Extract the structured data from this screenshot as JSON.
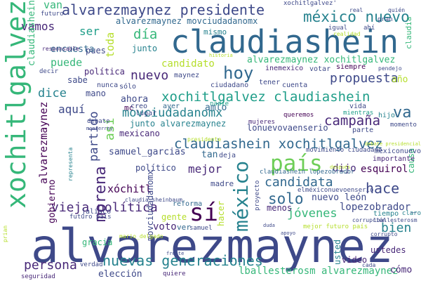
{
  "palette": [
    "#440154",
    "#482878",
    "#3e4989",
    "#31688e",
    "#26828e",
    "#1f9e89",
    "#35b779",
    "#6ece58",
    "#b5de2b",
    "#fde725"
  ],
  "words": [
    {
      "text": "alvarezmaynez",
      "rank": 1,
      "color": "#3e4989"
    },
    {
      "text": "claudiashein",
      "rank": 2,
      "color": "#31688e"
    },
    {
      "text": "xochitlgalvez",
      "rank": 3,
      "color": "#35b779"
    },
    {
      "text": "alvarezmaynez presidente",
      "rank": 4,
      "color": "#3e4989"
    },
    {
      "text": "méxico nuevo",
      "rank": 5,
      "color": "#26828e"
    },
    {
      "text": "país",
      "rank": 6,
      "color": "#6ece58"
    },
    {
      "text": "sí",
      "rank": 7,
      "color": "#440154"
    },
    {
      "text": "hoy",
      "rank": 8,
      "color": "#31688e"
    },
    {
      "text": "méxico",
      "rank": 9,
      "color": "#26828e"
    },
    {
      "text": "nuevas generaciones",
      "rank": 10,
      "color": "#26828e"
    },
    {
      "text": "vieja política",
      "rank": 11,
      "color": "#482878"
    },
    {
      "text": "xochitlgalvez claudiashein",
      "rank": 12,
      "color": "#1f9e89"
    },
    {
      "text": "claudiashein xochitlgalvez",
      "rank": 13,
      "color": "#31688e"
    },
    {
      "text": "campaña",
      "rank": 14,
      "color": "#482878"
    },
    {
      "text": "movciudadanomx",
      "rank": 15,
      "color": "#26828e"
    },
    {
      "text": "morena",
      "rank": 16,
      "color": "#482878"
    },
    {
      "text": "candidata",
      "rank": 17,
      "color": "#31688e"
    },
    {
      "text": "solo",
      "rank": 18,
      "color": "#31688e"
    },
    {
      "text": "hace",
      "rank": 19,
      "color": "#3e4989"
    },
    {
      "text": "bien",
      "rank": 20,
      "color": "#26828e"
    },
    {
      "text": "va",
      "rank": 21,
      "color": "#31688e"
    },
    {
      "text": "persona",
      "rank": 22,
      "color": "#482878"
    },
    {
      "text": "propuesta",
      "rank": 23,
      "color": "#3e4989"
    },
    {
      "text": "jóvenes",
      "rank": 24,
      "color": "#35b779"
    },
    {
      "text": "nuevo",
      "rank": 25,
      "color": "#482878"
    },
    {
      "text": "día",
      "rank": 26,
      "color": "#35b779"
    },
    {
      "text": "vamos",
      "rank": 27,
      "color": "#482878"
    },
    {
      "text": "candidato",
      "rank": 28,
      "color": "#b5de2b"
    },
    {
      "text": "partido",
      "rank": 29,
      "color": "#3e4989"
    },
    {
      "text": "así",
      "rank": 30,
      "color": "#6ece58"
    },
    {
      "text": "mejor",
      "rank": 31,
      "color": "#482878"
    },
    {
      "text": "alvarezmaynez xochitlgalvez",
      "rank": 32,
      "color": "#35b779"
    },
    {
      "text": "lballesterosm alvarezmaynez",
      "rank": 33,
      "color": "#35b779"
    },
    {
      "text": "voto",
      "rank": 34,
      "color": "#482878"
    },
    {
      "text": "aquí",
      "rank": 35,
      "color": "#3e4989"
    },
    {
      "text": "dice",
      "rank": 36,
      "color": "#26828e"
    },
    {
      "text": "gente",
      "rank": 37,
      "color": "#b5de2b"
    },
    {
      "text": "puede",
      "rank": 38,
      "color": "#35b779"
    },
    {
      "text": "ser",
      "rank": 39,
      "color": "#1f9e89"
    },
    {
      "text": "van",
      "rank": 40,
      "color": "#35b779"
    },
    {
      "text": "toda",
      "rank": 41,
      "color": "#b5de2b"
    },
    {
      "text": "xóchitl",
      "rank": 42,
      "color": "#440154"
    },
    {
      "text": "samuel_garcias",
      "rank": 43,
      "color": "#3e4989"
    },
    {
      "text": "lonuevovaenserio",
      "rank": 44,
      "color": "#3e4989"
    },
    {
      "text": "esquirol",
      "rank": 45,
      "color": "#440154"
    },
    {
      "text": "lopezobrador_",
      "rank": 46,
      "color": "#3e4989"
    },
    {
      "text": "nuevo león",
      "rank": 47,
      "color": "#3e4989"
    },
    {
      "text": "alvarezmaynez",
      "rank": 48,
      "color": "#440154"
    },
    {
      "text": "movciudadanomx",
      "rank": 49,
      "color": "#3e4989"
    },
    {
      "text": "alvarezmaynez movciudadanomx",
      "rank": 50,
      "color": "#31688e"
    },
    {
      "text": "claudiashein",
      "rank": 51,
      "color": "#35b779"
    },
    {
      "text": "gobierno",
      "rank": 52,
      "color": "#440154"
    },
    {
      "text": "encuesta",
      "rank": 53,
      "color": "#31688e"
    },
    {
      "text": "política",
      "rank": 54,
      "color": "#482878"
    },
    {
      "text": "ahora",
      "rank": 55,
      "color": "#3e4989"
    },
    {
      "text": "sabe",
      "rank": 56,
      "color": "#3e4989"
    },
    {
      "text": "mano",
      "rank": 57,
      "color": "#3e4989"
    },
    {
      "text": "amlo",
      "rank": 58,
      "color": "#31688e"
    },
    {
      "text": "junto",
      "rank": 59,
      "color": "#26828e"
    },
    {
      "text": "junto alvarezmaynez",
      "rank": 60,
      "color": "#26828e"
    },
    {
      "text": "mexicano",
      "rank": 61,
      "color": "#482878"
    },
    {
      "text": "político",
      "rank": 62,
      "color": "#3e4989"
    },
    {
      "text": "pues",
      "rank": 63,
      "color": "#3e4989"
    },
    {
      "text": "mismo",
      "rank": 64,
      "color": "#26828e"
    },
    {
      "text": "tan",
      "rank": 65,
      "color": "#31688e"
    },
    {
      "text": "dijo",
      "rank": 66,
      "color": "#482878"
    },
    {
      "text": "menos",
      "rank": 67,
      "color": "#482878"
    },
    {
      "text": "usted",
      "rank": 68,
      "color": "#26828e"
    },
    {
      "text": "ustedes",
      "rank": 69,
      "color": "#482878"
    },
    {
      "text": "video",
      "rank": 70,
      "color": "#482878"
    },
    {
      "text": "elección",
      "rank": 71,
      "color": "#3e4989"
    },
    {
      "text": "cómo",
      "rank": 72,
      "color": "#482878"
    },
    {
      "text": "hacer",
      "rank": 73,
      "color": "#b5de2b"
    },
    {
      "text": "causa",
      "rank": 74,
      "color": "#35b779"
    },
    {
      "text": "madre",
      "rank": 75,
      "color": "#3e4989"
    },
    {
      "text": "deja",
      "rank": 76,
      "color": "#3e4989"
    },
    {
      "text": "ver",
      "rank": 77,
      "color": "#31688e"
    },
    {
      "text": "claudia",
      "rank": 78,
      "color": "#35b779"
    },
    {
      "text": "gracia",
      "rank": 79,
      "color": "#35b779"
    },
    {
      "text": "reforma",
      "rank": 80,
      "color": "#31688e"
    },
    {
      "text": "mc",
      "rank": 81,
      "color": "#440154"
    },
    {
      "text": "creo",
      "rank": 82,
      "color": "#3e4989"
    },
    {
      "text": "lugar",
      "rank": 83,
      "color": "#3e4989"
    },
    {
      "text": "nadie",
      "rank": 84,
      "color": "#1f9e89"
    },
    {
      "text": "vida",
      "rank": 85,
      "color": "#3e4989"
    },
    {
      "text": "año",
      "rank": 86,
      "color": "#b5de2b"
    },
    {
      "text": "votar",
      "rank": 87,
      "color": "#3e4989"
    },
    {
      "text": "siempre",
      "rank": 88,
      "color": "#440154"
    },
    {
      "text": "inemexico",
      "rank": 89,
      "color": "#482878"
    },
    {
      "text": "maynez",
      "rank": 90,
      "color": "#3e4989"
    },
    {
      "text": "sólo",
      "rank": 91,
      "color": "#3e4989"
    },
    {
      "text": "nunca",
      "rank": 92,
      "color": "#3e4989"
    },
    {
      "text": "ciudadano",
      "rank": 93,
      "color": "#3e4989"
    },
    {
      "text": "ayer",
      "rank": 94,
      "color": "#31688e"
    },
    {
      "text": "tener",
      "rank": 95,
      "color": "#3e4989"
    },
    {
      "text": "cuenta",
      "rank": 96,
      "color": "#3e4989"
    },
    {
      "text": "parte",
      "rank": 97,
      "color": "#3e4989"
    },
    {
      "text": "hijo",
      "rank": 98,
      "color": "#26828e"
    },
    {
      "text": "momento",
      "rank": 99,
      "color": "#3e4989"
    },
    {
      "text": "mientras",
      "rank": 100,
      "color": "#1f9e89"
    },
    {
      "text": "queremos",
      "rank": 101,
      "color": "#440154"
    },
    {
      "text": "importante",
      "rank": 102,
      "color": "#482878"
    },
    {
      "text": "mexiconuevo",
      "rank": 103,
      "color": "#3e4989"
    },
    {
      "text": "elméxiconuevoenserio",
      "rank": 104,
      "color": "#3e4989"
    },
    {
      "text": "tiempo",
      "rank": 105,
      "color": "#26828e"
    },
    {
      "text": "claro",
      "rank": 106,
      "color": "#26828e"
    },
    {
      "text": "seguridad",
      "rank": 107,
      "color": "#482878"
    },
    {
      "text": "verdad",
      "rank": 108,
      "color": "#3e4989"
    },
    {
      "text": "quiere",
      "rank": 109,
      "color": "#482878"
    },
    {
      "text": "responsable",
      "rank": 110,
      "color": "#482878"
    },
    {
      "text": "decir",
      "rank": 111,
      "color": "#3e4989"
    },
    {
      "text": "futuro",
      "rank": 112,
      "color": "#3e4989"
    },
    {
      "text": "futuro país",
      "rank": 113,
      "color": "#3e4989"
    },
    {
      "text": "mejor futuro país",
      "rank": 114,
      "color": "#b5de2b"
    },
    {
      "text": "jalisco",
      "rank": 115,
      "color": "#3e4989"
    },
    {
      "text": "samuel",
      "rank": 116,
      "color": "#3e4989"
    },
    {
      "text": "presidente",
      "rank": 117,
      "color": "#b5de2b"
    },
    {
      "text": "claudiashein lopezobrador",
      "rank": 118,
      "color": "#31688e"
    },
    {
      "text": "movimiento ciudadano",
      "rank": 119,
      "color": "#3e4989"
    },
    {
      "text": "debate",
      "rank": 120,
      "color": "#3e4989"
    },
    {
      "text": "mujeres",
      "rank": 121,
      "color": "#482878"
    },
    {
      "text": "proyecto",
      "rank": 122,
      "color": "#3e4989"
    },
    {
      "text": "gran",
      "rank": 123,
      "color": "#3e4989"
    },
    {
      "text": "quién",
      "rank": 124,
      "color": "#3e4989"
    },
    {
      "text": "real",
      "rank": 125,
      "color": "#3e4989"
    },
    {
      "text": "igual",
      "rank": 126,
      "color": "#3e4989"
    },
    {
      "text": "realidad",
      "rank": 127,
      "color": "#b5de2b"
    },
    {
      "text": "ahí",
      "rank": 128,
      "color": "#3e4989"
    },
    {
      "text": "historia",
      "rank": 129,
      "color": "#b5de2b"
    },
    {
      "text": "monterrey",
      "rank": 130,
      "color": "#3e4989"
    },
    {
      "text": "corrupción",
      "rank": 131,
      "color": "#3e4989"
    },
    {
      "text": "lballesterosm",
      "rank": 132,
      "color": "#3e4989"
    },
    {
      "text": "corrupto",
      "rank": 133,
      "color": "#3e4989"
    },
    {
      "text": "apoyo",
      "rank": 134,
      "color": "#3e4989"
    },
    {
      "text": "duda",
      "rank": 135,
      "color": "#3e4989"
    },
    {
      "text": "representa",
      "rank": 136,
      "color": "#26828e"
    },
    {
      "text": "frente",
      "rank": 137,
      "color": "#3e4989"
    },
    {
      "text": "prian",
      "rank": 138,
      "color": "#b5de2b"
    },
    {
      "text": "pendejo",
      "rank": 139,
      "color": "#3e4989"
    },
    {
      "text": "debate presidencial",
      "rank": 140,
      "color": "#b5de2b"
    },
    {
      "text": "después",
      "rank": 141,
      "color": "#b5de2b"
    },
    {
      "text": "mario_delgado",
      "rank": 142,
      "color": "#b5de2b"
    },
    {
      "text": "claudia sheinbaum",
      "rank": 143,
      "color": "#3e4989"
    },
    {
      "text": "cada",
      "rank": 144,
      "color": "#3e4989"
    },
    {
      "text": "xochitlgalvez'",
      "rank": 145,
      "color": "#3e4989"
    }
  ]
}
